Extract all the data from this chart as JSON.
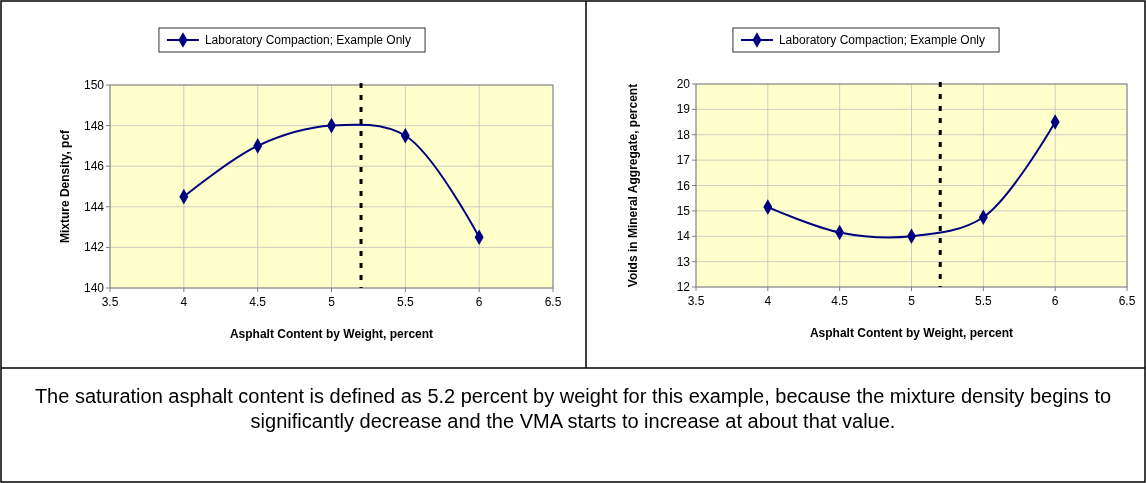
{
  "chart_data": [
    {
      "type": "line",
      "xlabel": "Asphalt Content by Weight, percent",
      "ylabel": "Mixture Density, pcf",
      "x": [
        4,
        4.5,
        5,
        5.5,
        6
      ],
      "series": [
        {
          "name": "Laboratory Compaction; Example Only",
          "color": "#000080",
          "values": [
            144.5,
            147,
            148,
            147.5,
            142.5
          ]
        }
      ],
      "xlim": [
        3.5,
        6.5
      ],
      "xticks": [
        3.5,
        4,
        4.5,
        5,
        5.5,
        6,
        6.5
      ],
      "ylim": [
        140,
        150
      ],
      "yticks": [
        140,
        142,
        144,
        146,
        148,
        150
      ],
      "ref_lines": [
        {
          "axis": "x",
          "value": 5.2,
          "color": "#000000",
          "line_style": "dashed"
        }
      ],
      "grid": true,
      "legend": "top",
      "marker": "diamond",
      "line_style": "solid"
    },
    {
      "type": "line",
      "xlabel": "Asphalt Content by Weight, percent",
      "ylabel": "Voids in Mineral Aggregate, percent",
      "x": [
        4,
        4.5,
        5,
        5.5,
        6
      ],
      "series": [
        {
          "name": "Laboratory Compaction; Example Only",
          "color": "#000080",
          "values": [
            15.15,
            14.15,
            14,
            14.75,
            18.5
          ]
        }
      ],
      "xlim": [
        3.5,
        6.5
      ],
      "xticks": [
        3.5,
        4,
        4.5,
        5,
        5.5,
        6,
        6.5
      ],
      "ylim": [
        12,
        20
      ],
      "yticks": [
        12,
        13,
        14,
        15,
        16,
        17,
        18,
        19,
        20
      ],
      "ref_lines": [
        {
          "axis": "x",
          "value": 5.2,
          "color": "#000000",
          "line_style": "dashed"
        }
      ],
      "grid": true,
      "legend": "top",
      "marker": "diamond",
      "line_style": "solid"
    },
    {
      "type": "other",
      "annotations": [
        "The saturation asphalt content is defined as 5.2 percent by weight for this example, because the mixture density begins to significantly decrease and the VMA starts to increase at about that value."
      ]
    }
  ]
}
